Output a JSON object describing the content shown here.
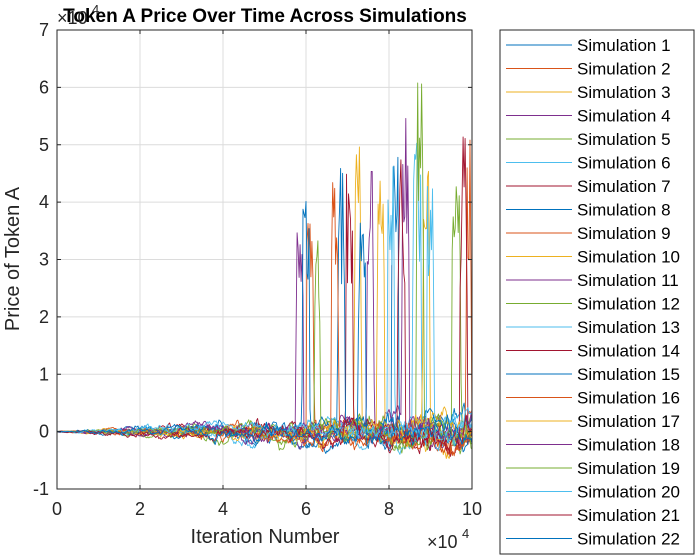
{
  "chart_data": {
    "type": "line",
    "title": "Token A Price Over Time Across Simulations",
    "xlabel": "Iteration Number",
    "ylabel": "Price of Token A",
    "x_multiplier_label": "×10",
    "x_multiplier_exponent": "4",
    "y_multiplier_label": "×10",
    "y_multiplier_exponent": "4",
    "xlim": [
      0,
      100000
    ],
    "ylim": [
      -10000,
      70000
    ],
    "x_ticks": [
      0,
      20000,
      40000,
      60000,
      80000,
      100000
    ],
    "x_tick_labels": [
      "0",
      "2",
      "4",
      "6",
      "8",
      "10"
    ],
    "y_ticks": [
      -10000,
      0,
      10000,
      20000,
      30000,
      40000,
      50000,
      60000,
      70000
    ],
    "y_tick_labels": [
      "-1",
      "0",
      "1",
      "2",
      "3",
      "4",
      "5",
      "6",
      "7"
    ],
    "grid": true,
    "legend_position": "outside-right",
    "series": [
      {
        "name": "Simulation 1",
        "color": "#0072BD",
        "spikes": [
          {
            "start": 80500,
            "end": 82500,
            "peak": 48000
          }
        ]
      },
      {
        "name": "Simulation 2",
        "color": "#D95319",
        "spikes": [
          {
            "start": 60000,
            "end": 62000,
            "peak": 45000
          }
        ]
      },
      {
        "name": "Simulation 3",
        "color": "#EDB120",
        "spikes": [
          {
            "start": 71500,
            "end": 73500,
            "peak": 51000
          }
        ]
      },
      {
        "name": "Simulation 4",
        "color": "#7E2F8E",
        "spikes": [
          {
            "start": 57500,
            "end": 59500,
            "peak": 41000
          }
        ]
      },
      {
        "name": "Simulation 5",
        "color": "#77AC30",
        "spikes": [
          {
            "start": 95000,
            "end": 97500,
            "peak": 52000
          }
        ]
      },
      {
        "name": "Simulation 6",
        "color": "#4DBEEE",
        "spikes": [
          {
            "start": 85500,
            "end": 88000,
            "peak": 51000
          }
        ]
      },
      {
        "name": "Simulation 7",
        "color": "#A2142F",
        "spikes": [
          {
            "start": 69500,
            "end": 71500,
            "peak": 45000
          }
        ]
      },
      {
        "name": "Simulation 8",
        "color": "#0072BD",
        "spikes": [
          {
            "start": 67500,
            "end": 69500,
            "peak": 46000
          }
        ]
      },
      {
        "name": "Simulation 9",
        "color": "#D95319",
        "spikes": [
          {
            "start": 98500,
            "end": 100000,
            "peak": 51000
          }
        ]
      },
      {
        "name": "Simulation 10",
        "color": "#EDB120",
        "spikes": [
          {
            "start": 88000,
            "end": 90000,
            "peak": 51000
          }
        ]
      },
      {
        "name": "Simulation 11",
        "color": "#7E2F8E",
        "spikes": [
          {
            "start": 74500,
            "end": 76500,
            "peak": 49000
          }
        ]
      },
      {
        "name": "Simulation 12",
        "color": "#77AC30",
        "spikes": [
          {
            "start": 86500,
            "end": 88500,
            "peak": 62000
          }
        ]
      },
      {
        "name": "Simulation 13",
        "color": "#4DBEEE",
        "spikes": [
          {
            "start": 79500,
            "end": 81500,
            "peak": 50000
          }
        ]
      },
      {
        "name": "Simulation 14",
        "color": "#A2142F",
        "spikes": [
          {
            "start": 97000,
            "end": 99000,
            "peak": 55000
          }
        ]
      },
      {
        "name": "Simulation 15",
        "color": "#0072BD",
        "spikes": [
          {
            "start": 59000,
            "end": 61000,
            "peak": 43000
          }
        ]
      },
      {
        "name": "Simulation 16",
        "color": "#D95319",
        "spikes": [
          {
            "start": 66000,
            "end": 68000,
            "peak": 45000
          }
        ]
      },
      {
        "name": "Simulation 17",
        "color": "#EDB120",
        "spikes": [
          {
            "start": 77000,
            "end": 79000,
            "peak": 52000
          }
        ]
      },
      {
        "name": "Simulation 18",
        "color": "#7E2F8E",
        "spikes": [
          {
            "start": 83000,
            "end": 85000,
            "peak": 59000
          }
        ]
      },
      {
        "name": "Simulation 19",
        "color": "#77AC30",
        "spikes": [
          {
            "start": 62000,
            "end": 63500,
            "peak": 35000
          }
        ]
      },
      {
        "name": "Simulation 20",
        "color": "#4DBEEE",
        "spikes": [
          {
            "start": 89000,
            "end": 91000,
            "peak": 43000
          }
        ]
      },
      {
        "name": "Simulation 21",
        "color": "#A2142F",
        "spikes": [
          {
            "start": 82000,
            "end": 84000,
            "peak": 48000
          }
        ]
      },
      {
        "name": "Simulation 22",
        "color": "#0072BD",
        "spikes": [
          {
            "start": 72500,
            "end": 74500,
            "peak": 46000
          }
        ]
      }
    ]
  }
}
